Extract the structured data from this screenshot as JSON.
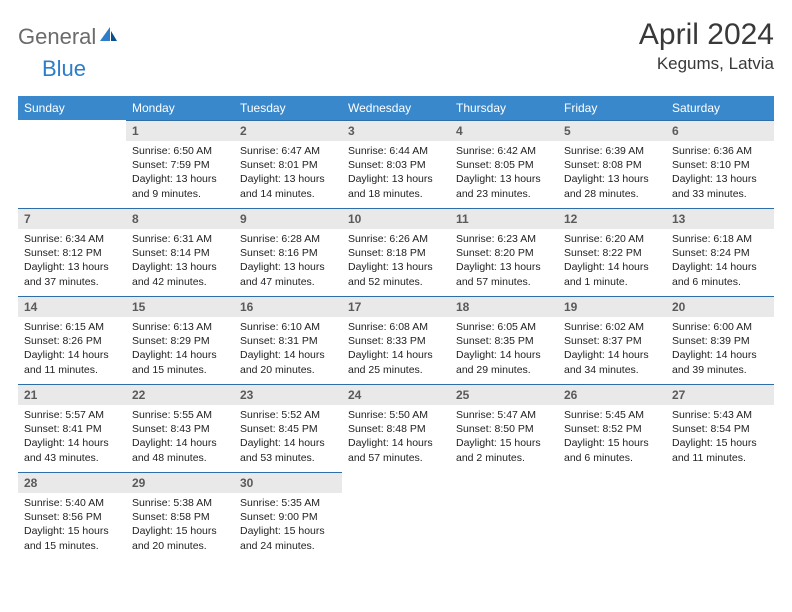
{
  "logo": {
    "gray": "General",
    "blue": "Blue"
  },
  "title": "April 2024",
  "location": "Kegums, Latvia",
  "colors": {
    "header_bg": "#3a88cc",
    "header_text": "#ffffff",
    "daynum_bg": "#e9e9e9",
    "daynum_border": "#2d6ea8",
    "body_text": "#222222",
    "logo_gray": "#6b6b6b",
    "logo_blue": "#2d7dc9"
  },
  "weekdays": [
    "Sunday",
    "Monday",
    "Tuesday",
    "Wednesday",
    "Thursday",
    "Friday",
    "Saturday"
  ],
  "start_offset": 1,
  "days": [
    {
      "n": "1",
      "l1": "Sunrise: 6:50 AM",
      "l2": "Sunset: 7:59 PM",
      "l3": "Daylight: 13 hours",
      "l4": "and 9 minutes."
    },
    {
      "n": "2",
      "l1": "Sunrise: 6:47 AM",
      "l2": "Sunset: 8:01 PM",
      "l3": "Daylight: 13 hours",
      "l4": "and 14 minutes."
    },
    {
      "n": "3",
      "l1": "Sunrise: 6:44 AM",
      "l2": "Sunset: 8:03 PM",
      "l3": "Daylight: 13 hours",
      "l4": "and 18 minutes."
    },
    {
      "n": "4",
      "l1": "Sunrise: 6:42 AM",
      "l2": "Sunset: 8:05 PM",
      "l3": "Daylight: 13 hours",
      "l4": "and 23 minutes."
    },
    {
      "n": "5",
      "l1": "Sunrise: 6:39 AM",
      "l2": "Sunset: 8:08 PM",
      "l3": "Daylight: 13 hours",
      "l4": "and 28 minutes."
    },
    {
      "n": "6",
      "l1": "Sunrise: 6:36 AM",
      "l2": "Sunset: 8:10 PM",
      "l3": "Daylight: 13 hours",
      "l4": "and 33 minutes."
    },
    {
      "n": "7",
      "l1": "Sunrise: 6:34 AM",
      "l2": "Sunset: 8:12 PM",
      "l3": "Daylight: 13 hours",
      "l4": "and 37 minutes."
    },
    {
      "n": "8",
      "l1": "Sunrise: 6:31 AM",
      "l2": "Sunset: 8:14 PM",
      "l3": "Daylight: 13 hours",
      "l4": "and 42 minutes."
    },
    {
      "n": "9",
      "l1": "Sunrise: 6:28 AM",
      "l2": "Sunset: 8:16 PM",
      "l3": "Daylight: 13 hours",
      "l4": "and 47 minutes."
    },
    {
      "n": "10",
      "l1": "Sunrise: 6:26 AM",
      "l2": "Sunset: 8:18 PM",
      "l3": "Daylight: 13 hours",
      "l4": "and 52 minutes."
    },
    {
      "n": "11",
      "l1": "Sunrise: 6:23 AM",
      "l2": "Sunset: 8:20 PM",
      "l3": "Daylight: 13 hours",
      "l4": "and 57 minutes."
    },
    {
      "n": "12",
      "l1": "Sunrise: 6:20 AM",
      "l2": "Sunset: 8:22 PM",
      "l3": "Daylight: 14 hours",
      "l4": "and 1 minute."
    },
    {
      "n": "13",
      "l1": "Sunrise: 6:18 AM",
      "l2": "Sunset: 8:24 PM",
      "l3": "Daylight: 14 hours",
      "l4": "and 6 minutes."
    },
    {
      "n": "14",
      "l1": "Sunrise: 6:15 AM",
      "l2": "Sunset: 8:26 PM",
      "l3": "Daylight: 14 hours",
      "l4": "and 11 minutes."
    },
    {
      "n": "15",
      "l1": "Sunrise: 6:13 AM",
      "l2": "Sunset: 8:29 PM",
      "l3": "Daylight: 14 hours",
      "l4": "and 15 minutes."
    },
    {
      "n": "16",
      "l1": "Sunrise: 6:10 AM",
      "l2": "Sunset: 8:31 PM",
      "l3": "Daylight: 14 hours",
      "l4": "and 20 minutes."
    },
    {
      "n": "17",
      "l1": "Sunrise: 6:08 AM",
      "l2": "Sunset: 8:33 PM",
      "l3": "Daylight: 14 hours",
      "l4": "and 25 minutes."
    },
    {
      "n": "18",
      "l1": "Sunrise: 6:05 AM",
      "l2": "Sunset: 8:35 PM",
      "l3": "Daylight: 14 hours",
      "l4": "and 29 minutes."
    },
    {
      "n": "19",
      "l1": "Sunrise: 6:02 AM",
      "l2": "Sunset: 8:37 PM",
      "l3": "Daylight: 14 hours",
      "l4": "and 34 minutes."
    },
    {
      "n": "20",
      "l1": "Sunrise: 6:00 AM",
      "l2": "Sunset: 8:39 PM",
      "l3": "Daylight: 14 hours",
      "l4": "and 39 minutes."
    },
    {
      "n": "21",
      "l1": "Sunrise: 5:57 AM",
      "l2": "Sunset: 8:41 PM",
      "l3": "Daylight: 14 hours",
      "l4": "and 43 minutes."
    },
    {
      "n": "22",
      "l1": "Sunrise: 5:55 AM",
      "l2": "Sunset: 8:43 PM",
      "l3": "Daylight: 14 hours",
      "l4": "and 48 minutes."
    },
    {
      "n": "23",
      "l1": "Sunrise: 5:52 AM",
      "l2": "Sunset: 8:45 PM",
      "l3": "Daylight: 14 hours",
      "l4": "and 53 minutes."
    },
    {
      "n": "24",
      "l1": "Sunrise: 5:50 AM",
      "l2": "Sunset: 8:48 PM",
      "l3": "Daylight: 14 hours",
      "l4": "and 57 minutes."
    },
    {
      "n": "25",
      "l1": "Sunrise: 5:47 AM",
      "l2": "Sunset: 8:50 PM",
      "l3": "Daylight: 15 hours",
      "l4": "and 2 minutes."
    },
    {
      "n": "26",
      "l1": "Sunrise: 5:45 AM",
      "l2": "Sunset: 8:52 PM",
      "l3": "Daylight: 15 hours",
      "l4": "and 6 minutes."
    },
    {
      "n": "27",
      "l1": "Sunrise: 5:43 AM",
      "l2": "Sunset: 8:54 PM",
      "l3": "Daylight: 15 hours",
      "l4": "and 11 minutes."
    },
    {
      "n": "28",
      "l1": "Sunrise: 5:40 AM",
      "l2": "Sunset: 8:56 PM",
      "l3": "Daylight: 15 hours",
      "l4": "and 15 minutes."
    },
    {
      "n": "29",
      "l1": "Sunrise: 5:38 AM",
      "l2": "Sunset: 8:58 PM",
      "l3": "Daylight: 15 hours",
      "l4": "and 20 minutes."
    },
    {
      "n": "30",
      "l1": "Sunrise: 5:35 AM",
      "l2": "Sunset: 9:00 PM",
      "l3": "Daylight: 15 hours",
      "l4": "and 24 minutes."
    }
  ]
}
